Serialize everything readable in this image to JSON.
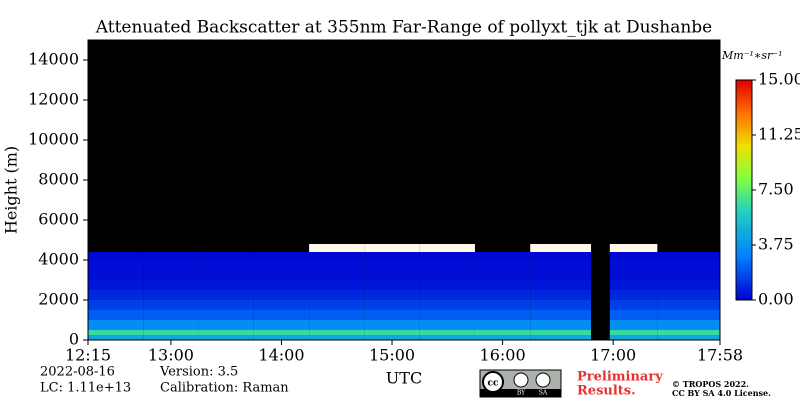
{
  "chart_data": {
    "type": "heatmap",
    "title": "Attenuated Backscatter at 355nm Far-Range of pollyxt_tjk at Dushanbe",
    "xlabel": "UTC",
    "ylabel": "Height (m)",
    "x_edges": [
      12.25,
      12.75,
      13.25,
      13.75,
      14.25,
      14.75,
      15.25,
      15.75,
      16.25,
      16.8,
      16.97,
      17.4,
      17.9667
    ],
    "y_edges": [
      0,
      250,
      500,
      1000,
      1500,
      2000,
      2500,
      3000,
      4000,
      4400,
      4800,
      15000
    ],
    "values": [
      [
        4.5,
        4.5,
        4.5,
        4.5,
        4.5,
        4.5,
        4.5,
        4.5,
        4.5,
        null,
        4.5,
        4.5
      ],
      [
        6.5,
        6.5,
        6.5,
        6.5,
        6.5,
        6.5,
        6.5,
        6.5,
        6.5,
        null,
        6.5,
        6.5
      ],
      [
        3.5,
        3.5,
        3.5,
        3.5,
        3.5,
        3.5,
        3.5,
        3.5,
        3.5,
        null,
        3.5,
        3.5
      ],
      [
        2.2,
        2.2,
        2.2,
        2.2,
        2.2,
        2.2,
        2.2,
        2.2,
        2.2,
        null,
        2.2,
        2.2
      ],
      [
        1.5,
        1.5,
        1.5,
        1.5,
        1.5,
        1.5,
        1.5,
        1.5,
        1.5,
        null,
        1.5,
        1.5
      ],
      [
        0.9,
        0.9,
        0.9,
        0.9,
        0.9,
        0.9,
        0.9,
        0.9,
        0.9,
        null,
        0.9,
        0.9
      ],
      [
        0.5,
        0.5,
        0.5,
        0.5,
        0.5,
        0.5,
        0.5,
        0.5,
        0.5,
        null,
        0.5,
        0.5
      ],
      [
        0.3,
        0.3,
        0.3,
        0.3,
        0.3,
        0.3,
        0.3,
        0.3,
        0.3,
        null,
        0.3,
        0.3
      ],
      [
        0.2,
        0.2,
        0.2,
        0.2,
        0.2,
        0.2,
        0.2,
        0.2,
        0.2,
        null,
        0.2,
        0.2
      ],
      [
        null,
        null,
        null,
        null,
        20,
        20,
        20,
        null,
        20,
        null,
        20,
        null
      ],
      [
        null,
        null,
        null,
        null,
        null,
        null,
        null,
        null,
        null,
        null,
        null,
        null
      ]
    ],
    "xlim": [
      12.25,
      17.9667
    ],
    "xticks": [
      {
        "value": 12.25,
        "label": "12:15"
      },
      {
        "value": 13,
        "label": "13:00"
      },
      {
        "value": 14,
        "label": "14:00"
      },
      {
        "value": 15,
        "label": "15:00"
      },
      {
        "value": 16,
        "label": "16:00"
      },
      {
        "value": 17,
        "label": "17:00"
      },
      {
        "value": 17.9667,
        "label": "17:58"
      }
    ],
    "ylim": [
      0,
      15000
    ],
    "yticks": [
      0,
      2000,
      4000,
      6000,
      8000,
      10000,
      12000,
      14000
    ],
    "clim": [
      0,
      15
    ],
    "cticks": [
      {
        "value": 0,
        "label": "0.00"
      },
      {
        "value": 3.75,
        "label": "3.75"
      },
      {
        "value": 7.5,
        "label": "7.50"
      },
      {
        "value": 11.25,
        "label": "11.25"
      },
      {
        "value": 15,
        "label": "15.00"
      }
    ],
    "colorbar_label": "Mm⁻¹∗sr⁻¹",
    "background": "#000000"
  },
  "footer": {
    "date": "2022-08-16",
    "version": "Version: 3.5",
    "lc": "LC: 1.11e+13",
    "calibration": "Calibration: Raman",
    "preliminary": [
      "Preliminary",
      "Results."
    ],
    "badge": [
      "BY",
      "SA"
    ],
    "tropos": [
      "© TROPOS 2022.",
      "CC BY SA 4.0 License."
    ]
  }
}
